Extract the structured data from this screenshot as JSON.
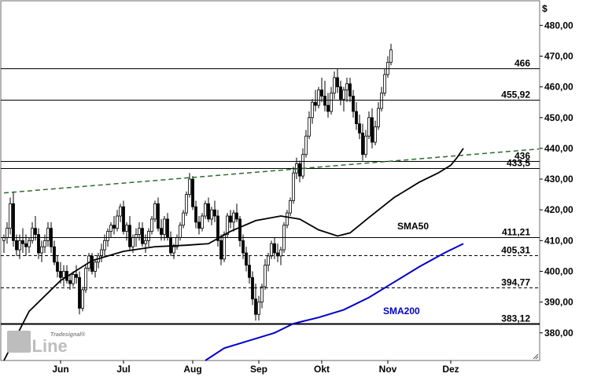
{
  "chart_data": {
    "type": "candlestick",
    "currency_label": "$",
    "ylim": [
      371,
      488
    ],
    "y_ticks": [
      380,
      390,
      400,
      410,
      420,
      430,
      440,
      450,
      460,
      470,
      480
    ],
    "y_tick_labels": [
      "380,00",
      "390,00",
      "400,00",
      "410,00",
      "420,00",
      "430,00",
      "440,00",
      "450,00",
      "460,00",
      "470,00",
      "480,00"
    ],
    "x_months": [
      {
        "label": "Jun",
        "idx": 18
      },
      {
        "label": "Jul",
        "idx": 38
      },
      {
        "label": "Aug",
        "idx": 60
      },
      {
        "label": "Sep",
        "idx": 81
      },
      {
        "label": "Okt",
        "idx": 101
      },
      {
        "label": "Nov",
        "idx": 122
      },
      {
        "label": "Dez",
        "idx": 142
      }
    ],
    "levels": [
      {
        "value": 466,
        "label": "466",
        "style": "solid"
      },
      {
        "value": 455.92,
        "label": "455,92",
        "style": "solid"
      },
      {
        "value": 436,
        "label": "436",
        "style": "solid"
      },
      {
        "value": 433.5,
        "label": "433,5",
        "style": "solid"
      },
      {
        "value": 411.21,
        "label": "411,21",
        "style": "solid"
      },
      {
        "value": 405.31,
        "label": "405,31",
        "style": "dashed"
      },
      {
        "value": 394.77,
        "label": "394,77",
        "style": "dashed"
      },
      {
        "value": 383.12,
        "label": "383,12",
        "style": "bold"
      }
    ],
    "trendline": {
      "from": {
        "idx": 0,
        "value": 425.5
      },
      "to": {
        "idx": 170,
        "value": 439.8
      },
      "color": "#2e6b2e"
    },
    "sma50": {
      "name": "SMA50",
      "color": "#000000",
      "points": [
        [
          0,
          371
        ],
        [
          8,
          387
        ],
        [
          18,
          397
        ],
        [
          28,
          403.5
        ],
        [
          38,
          406.5
        ],
        [
          48,
          408
        ],
        [
          58,
          408.5
        ],
        [
          65,
          409
        ],
        [
          72,
          413
        ],
        [
          80,
          416.5
        ],
        [
          88,
          418
        ],
        [
          94,
          417
        ],
        [
          100,
          413.5
        ],
        [
          106,
          411.5
        ],
        [
          110,
          412.5
        ],
        [
          116,
          417.5
        ],
        [
          124,
          424
        ],
        [
          132,
          429
        ],
        [
          138,
          432
        ],
        [
          142,
          434.5
        ],
        [
          144,
          437
        ],
        [
          146,
          440
        ]
      ]
    },
    "sma200": {
      "name": "SMA200",
      "color": "#0000cc",
      "points": [
        [
          64,
          371
        ],
        [
          70,
          375
        ],
        [
          78,
          377.5
        ],
        [
          86,
          380
        ],
        [
          92,
          383
        ],
        [
          100,
          385
        ],
        [
          108,
          387.5
        ],
        [
          116,
          391.5
        ],
        [
          124,
          396.5
        ],
        [
          132,
          401.5
        ],
        [
          140,
          406
        ],
        [
          146,
          409
        ]
      ]
    },
    "candles": [
      [
        410,
        412,
        406,
        411
      ],
      [
        411,
        416,
        409,
        414
      ],
      [
        414,
        424,
        412,
        422
      ],
      [
        422,
        426,
        408,
        410
      ],
      [
        410,
        412,
        405,
        407
      ],
      [
        407,
        412,
        404,
        410
      ],
      [
        410,
        414,
        406,
        409
      ],
      [
        409,
        412,
        405,
        408
      ],
      [
        408,
        411,
        406,
        410
      ],
      [
        410,
        416,
        409,
        414
      ],
      [
        414,
        418,
        410,
        412
      ],
      [
        412,
        414,
        404,
        406
      ],
      [
        406,
        410,
        403,
        408
      ],
      [
        408,
        412,
        406,
        410
      ],
      [
        410,
        416,
        408,
        414
      ],
      [
        414,
        416,
        406,
        408
      ],
      [
        408,
        410,
        402,
        403
      ],
      [
        403,
        405,
        398,
        400
      ],
      [
        400,
        403,
        396,
        398
      ],
      [
        398,
        402,
        395,
        400
      ],
      [
        400,
        402,
        396,
        397
      ],
      [
        397,
        399,
        394,
        396
      ],
      [
        396,
        400,
        395,
        399
      ],
      [
        399,
        402,
        396,
        398
      ],
      [
        398,
        400,
        386,
        388
      ],
      [
        388,
        395,
        387,
        394
      ],
      [
        394,
        402,
        393,
        401
      ],
      [
        401,
        406,
        400,
        405
      ],
      [
        405,
        406,
        399,
        400
      ],
      [
        400,
        404,
        398,
        403
      ],
      [
        403,
        406,
        401,
        405
      ],
      [
        405,
        409,
        403,
        407
      ],
      [
        407,
        412,
        405,
        410
      ],
      [
        410,
        414,
        408,
        413
      ],
      [
        413,
        416,
        411,
        415
      ],
      [
        415,
        418,
        412,
        414
      ],
      [
        414,
        420,
        413,
        418
      ],
      [
        418,
        422,
        416,
        421
      ],
      [
        421,
        423,
        412,
        413
      ],
      [
        413,
        416,
        410,
        415
      ],
      [
        415,
        418,
        407,
        408
      ],
      [
        408,
        412,
        406,
        411
      ],
      [
        411,
        414,
        408,
        412
      ],
      [
        412,
        416,
        410,
        414
      ],
      [
        414,
        416,
        408,
        409
      ],
      [
        409,
        412,
        406,
        410
      ],
      [
        410,
        414,
        408,
        413
      ],
      [
        413,
        418,
        412,
        417
      ],
      [
        417,
        423,
        416,
        422
      ],
      [
        422,
        424,
        413,
        414
      ],
      [
        414,
        417,
        410,
        412
      ],
      [
        412,
        418,
        410,
        417
      ],
      [
        417,
        419,
        410,
        411
      ],
      [
        411,
        413,
        405,
        406
      ],
      [
        406,
        409,
        404,
        408
      ],
      [
        408,
        412,
        407,
        411
      ],
      [
        411,
        416,
        410,
        415
      ],
      [
        415,
        420,
        414,
        419
      ],
      [
        419,
        426,
        418,
        425
      ],
      [
        425,
        432,
        424,
        430
      ],
      [
        430,
        431,
        420,
        421
      ],
      [
        421,
        423,
        414,
        416
      ],
      [
        416,
        418,
        412,
        414
      ],
      [
        414,
        419,
        413,
        418
      ],
      [
        418,
        423,
        417,
        422
      ],
      [
        422,
        424,
        416,
        417
      ],
      [
        417,
        421,
        415,
        420
      ],
      [
        420,
        423,
        416,
        418
      ],
      [
        418,
        420,
        408,
        410
      ],
      [
        410,
        412,
        402,
        404
      ],
      [
        404,
        413,
        403,
        412
      ],
      [
        412,
        419,
        411,
        418
      ],
      [
        418,
        420,
        414,
        416
      ],
      [
        416,
        420,
        413,
        419
      ],
      [
        419,
        422,
        416,
        417
      ],
      [
        417,
        418,
        408,
        410
      ],
      [
        410,
        412,
        404,
        406
      ],
      [
        406,
        408,
        400,
        402
      ],
      [
        402,
        405,
        396,
        398
      ],
      [
        398,
        400,
        389,
        391
      ],
      [
        391,
        396,
        384,
        386
      ],
      [
        386,
        392,
        384,
        390
      ],
      [
        390,
        396,
        388,
        395
      ],
      [
        395,
        404,
        394,
        402
      ],
      [
        402,
        406,
        400,
        405
      ],
      [
        405,
        410,
        404,
        409
      ],
      [
        409,
        411,
        404,
        406
      ],
      [
        406,
        409,
        403,
        405
      ],
      [
        405,
        408,
        402,
        407
      ],
      [
        407,
        416,
        406,
        415
      ],
      [
        415,
        420,
        414,
        419
      ],
      [
        419,
        424,
        418,
        423
      ],
      [
        423,
        434,
        422,
        432
      ],
      [
        432,
        437,
        430,
        435
      ],
      [
        435,
        436,
        429,
        431
      ],
      [
        431,
        440,
        430,
        438
      ],
      [
        438,
        446,
        437,
        444
      ],
      [
        444,
        452,
        443,
        450
      ],
      [
        450,
        456,
        448,
        455
      ],
      [
        455,
        459,
        452,
        454
      ],
      [
        454,
        460,
        453,
        459
      ],
      [
        459,
        463,
        455,
        457
      ],
      [
        457,
        462,
        452,
        454
      ],
      [
        454,
        458,
        450,
        452
      ],
      [
        452,
        460,
        451,
        458
      ],
      [
        458,
        465,
        456,
        463
      ],
      [
        463,
        466,
        458,
        460
      ],
      [
        460,
        462,
        454,
        456
      ],
      [
        456,
        460,
        452,
        459
      ],
      [
        459,
        463,
        455,
        461
      ],
      [
        461,
        463,
        455,
        457
      ],
      [
        457,
        459,
        450,
        452
      ],
      [
        452,
        455,
        446,
        448
      ],
      [
        448,
        451,
        443,
        445
      ],
      [
        445,
        448,
        436,
        438
      ],
      [
        438,
        446,
        437,
        444
      ],
      [
        444,
        452,
        443,
        450
      ],
      [
        450,
        453,
        440,
        442
      ],
      [
        442,
        449,
        441,
        447
      ],
      [
        447,
        455,
        446,
        453
      ],
      [
        453,
        460,
        452,
        458
      ],
      [
        458,
        466,
        457,
        464
      ],
      [
        464,
        470,
        463,
        468
      ],
      [
        468,
        474,
        467,
        472
      ]
    ]
  },
  "sma50_label": "SMA50",
  "sma200_label": "SMA200",
  "logo": {
    "brand_small": "Tradesignal®",
    "brand_big": "OnLine"
  }
}
